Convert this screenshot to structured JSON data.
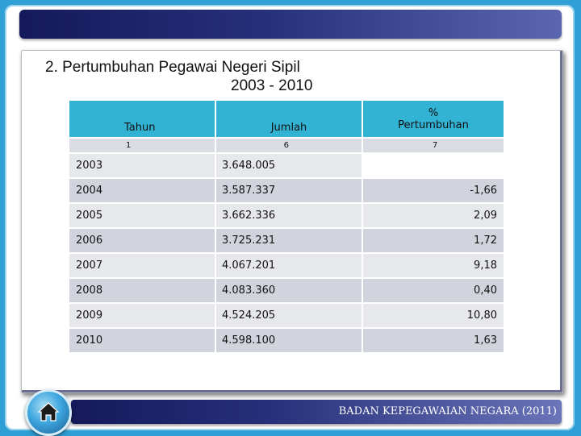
{
  "title": {
    "line1": "2. Pertumbuhan Pegawai Negeri Sipil",
    "line2": "2003 - 2010"
  },
  "table": {
    "headers": [
      "Tahun",
      "Jumlah",
      "% Pertumbuhan"
    ],
    "header_pct_symbol": "%",
    "header_pct_label": "Pertumbuhan",
    "column_numbers": [
      "1",
      "6",
      "7"
    ],
    "rows": [
      {
        "year": "2003",
        "jumlah": "3.648.005",
        "pct": ""
      },
      {
        "year": "2004",
        "jumlah": "3.587.337",
        "pct": "-1,66"
      },
      {
        "year": "2005",
        "jumlah": "3.662.336",
        "pct": "2,09"
      },
      {
        "year": "2006",
        "jumlah": "3.725.231",
        "pct": "1,72"
      },
      {
        "year": "2007",
        "jumlah": "4.067.201",
        "pct": "9,18"
      },
      {
        "year": "2008",
        "jumlah": "4.083.360",
        "pct": "0,40"
      },
      {
        "year": "2009",
        "jumlah": "4.524.205",
        "pct": "10,80"
      },
      {
        "year": "2010",
        "jumlah": "4.598.100",
        "pct": "1,63"
      }
    ]
  },
  "footer": {
    "text": "BADAN KEPEGAWAIAN NEGARA (2011)"
  },
  "nav": {
    "home_icon": "home-icon"
  },
  "colors": {
    "header_bg": "#32b3d4",
    "bar_dark": "#141a5a",
    "page_bg": "#2f9fd6"
  }
}
